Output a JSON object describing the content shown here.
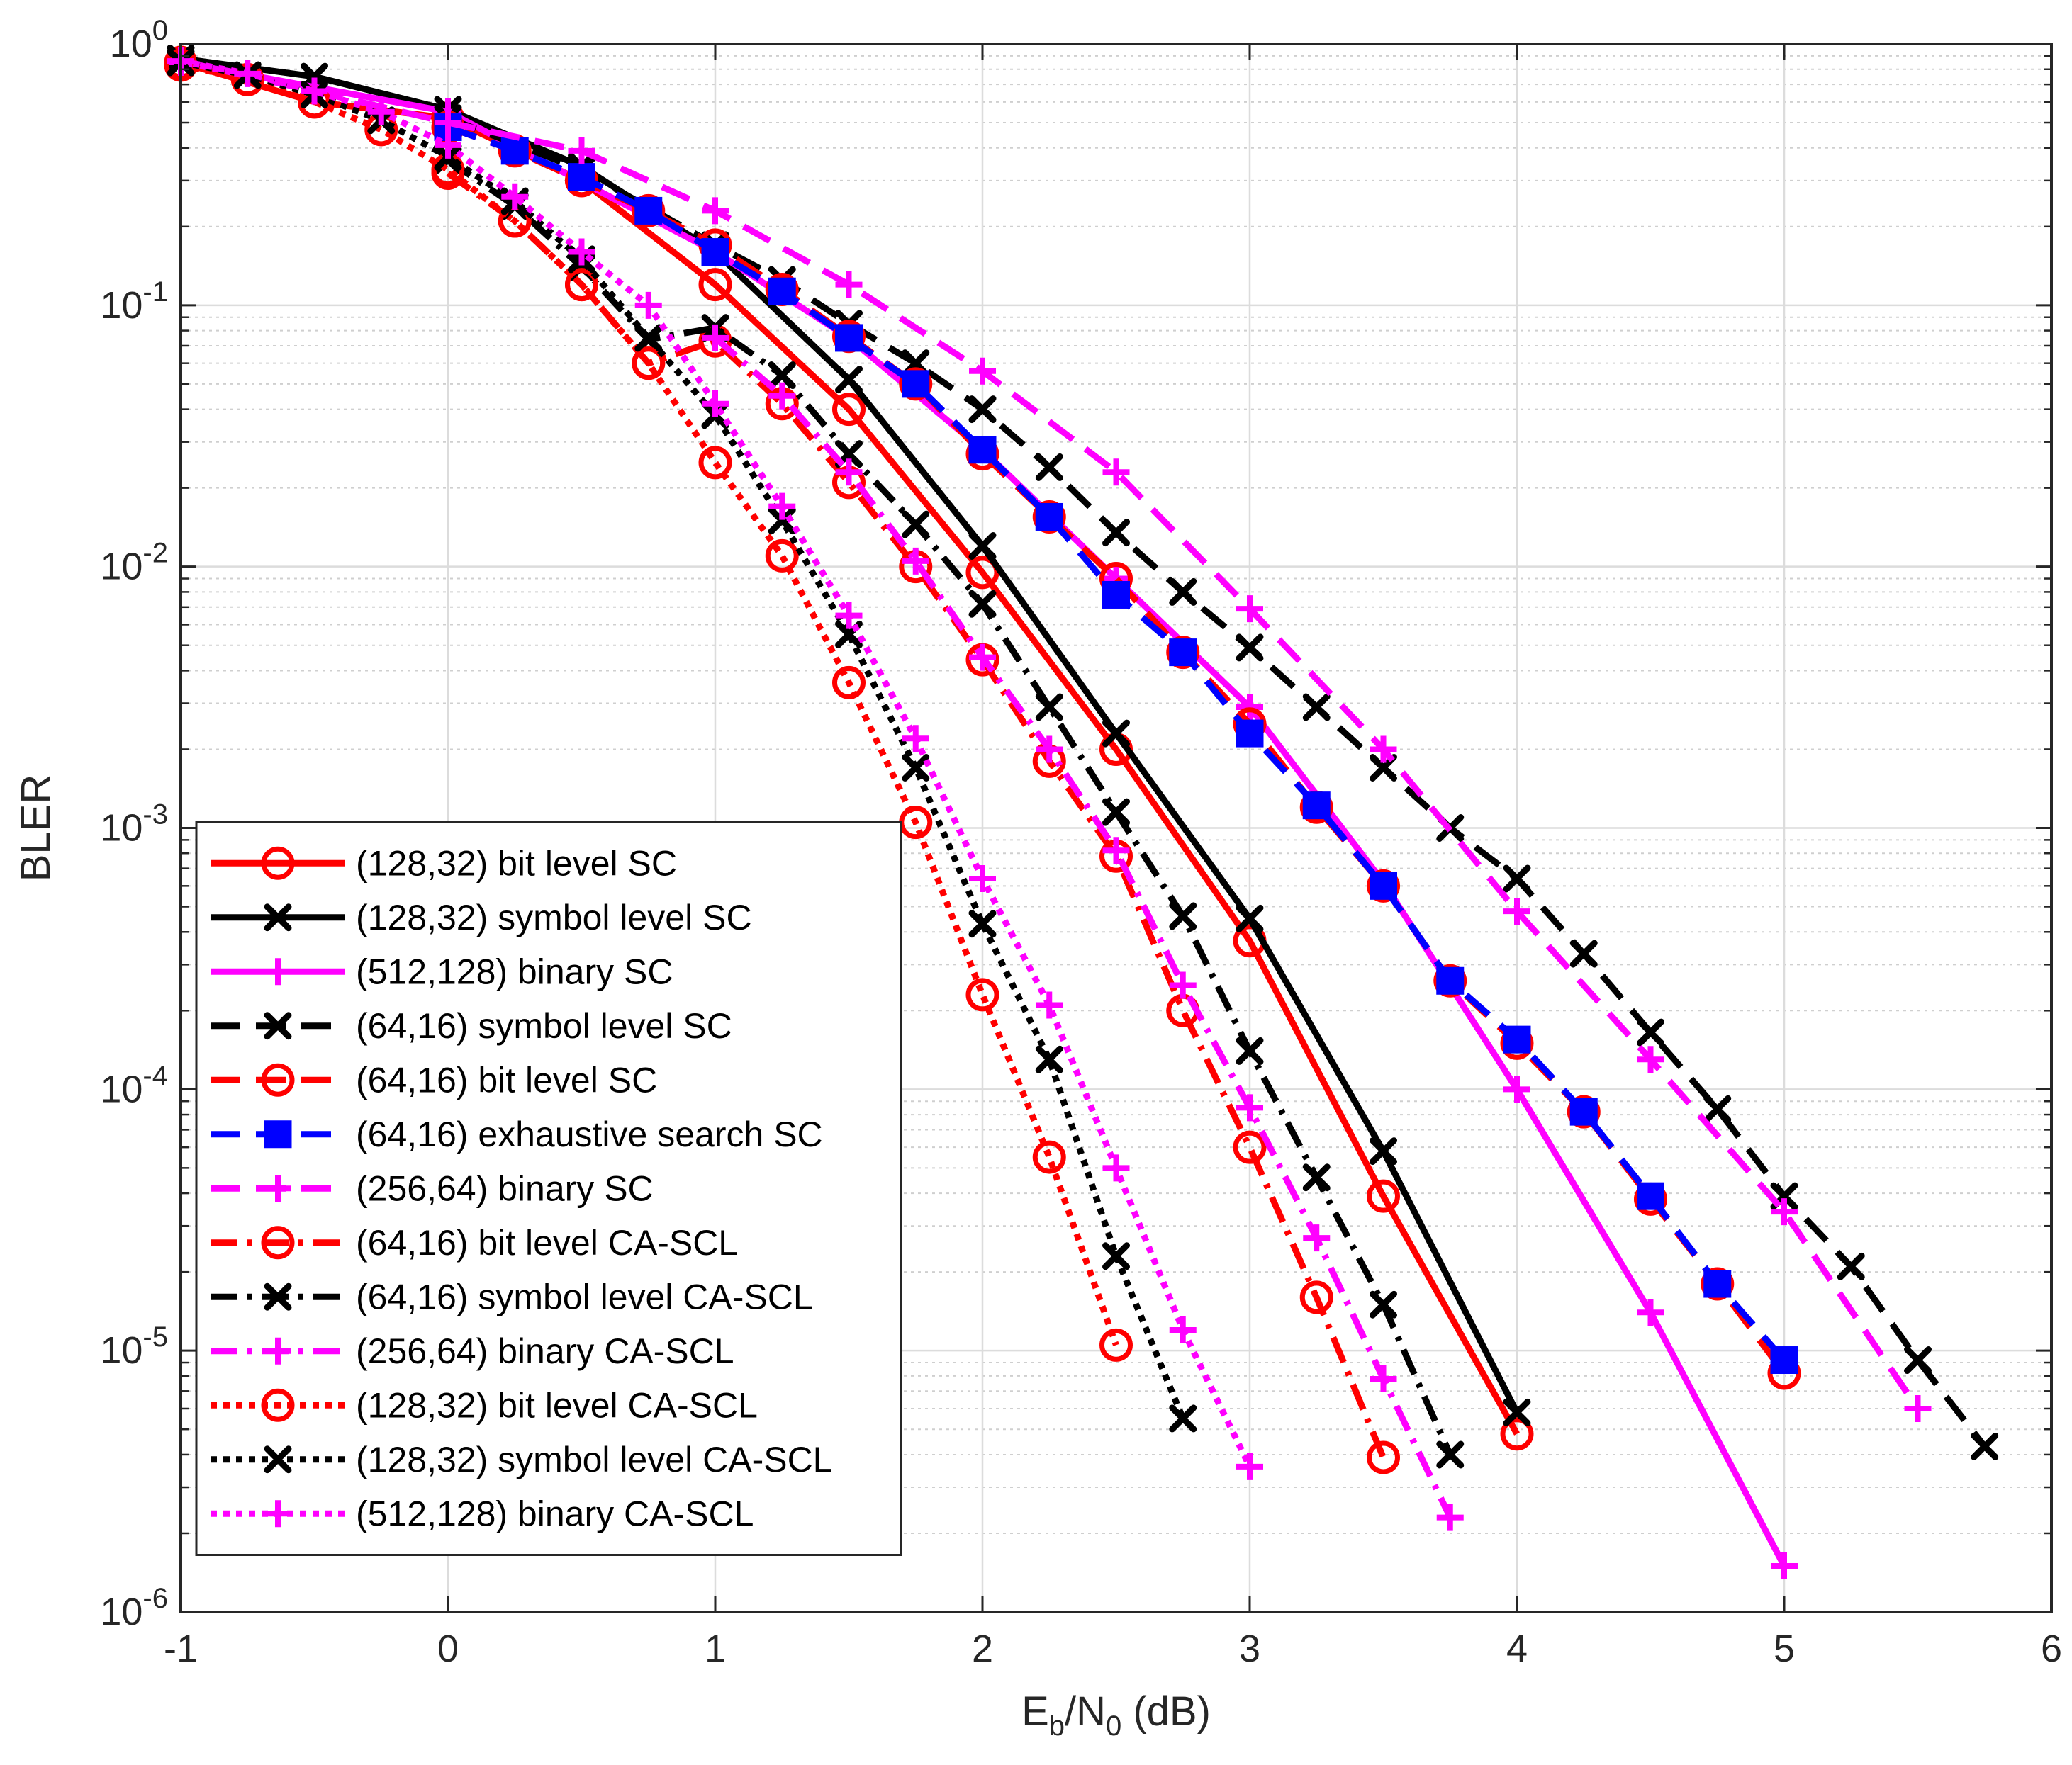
{
  "chart_data": {
    "type": "line",
    "title": "",
    "xlabel": {
      "base": "E",
      "sub1": "b",
      "mid": "/N",
      "sub2": "0",
      "tail": " (dB)"
    },
    "ylabel": "BLER",
    "xlim": [
      -1,
      6
    ],
    "ylim_log10": [
      -6,
      0
    ],
    "yscale": "log",
    "grid": true,
    "legend_position": "bottom-left",
    "x_ticks": [
      "-1",
      "0",
      "1",
      "2",
      "3",
      "4",
      "5",
      "6"
    ],
    "y_ticks": [
      {
        "base": "10",
        "exp": "0"
      },
      {
        "base": "10",
        "exp": "-1"
      },
      {
        "base": "10",
        "exp": "-2"
      },
      {
        "base": "10",
        "exp": "-3"
      },
      {
        "base": "10",
        "exp": "-4"
      },
      {
        "base": "10",
        "exp": "-5"
      },
      {
        "base": "10",
        "exp": "-6"
      }
    ],
    "series": [
      {
        "name": "(128,32) bit level SC",
        "color": "#ff0000",
        "dash": "solid",
        "marker": "circle",
        "x": [
          -1,
          -0.5,
          0,
          0.5,
          1,
          1.5,
          2,
          2.5,
          3,
          3.5,
          4
        ],
        "y": [
          0.85,
          0.6,
          0.52,
          0.3,
          0.12,
          0.04,
          0.0095,
          0.002,
          0.00037,
          3.9e-05,
          4.8e-06
        ]
      },
      {
        "name": "(128,32) symbol level SC",
        "color": "#000000",
        "dash": "solid",
        "marker": "x",
        "x": [
          -1,
          -0.5,
          0,
          0.5,
          1,
          1.5,
          2,
          2.5,
          3,
          3.5,
          4
        ],
        "y": [
          0.88,
          0.75,
          0.56,
          0.34,
          0.16,
          0.052,
          0.012,
          0.0023,
          0.00045,
          5.8e-05,
          5.8e-06
        ]
      },
      {
        "name": "(512,128) binary SC",
        "color": "#ff00ff",
        "dash": "solid",
        "marker": "plus",
        "x": [
          -1,
          0,
          1,
          1.5,
          2,
          2.5,
          3,
          3.5,
          4,
          4.5,
          5
        ],
        "y": [
          0.85,
          0.55,
          0.16,
          0.075,
          0.028,
          0.009,
          0.0029,
          0.00062,
          0.0001,
          1.4e-05,
          1.5e-06
        ]
      },
      {
        "name": "(64,16) symbol level SC",
        "color": "#000000",
        "dash": "dashed",
        "marker": "x",
        "x": [
          0,
          0.5,
          1,
          1.25,
          1.5,
          1.75,
          2,
          2.25,
          2.5,
          2.75,
          3,
          3.25,
          3.5,
          3.75,
          4,
          4.25,
          4.5,
          4.75,
          5,
          5.25,
          5.5,
          5.75
        ],
        "y": [
          0.52,
          0.33,
          0.17,
          0.125,
          0.085,
          0.06,
          0.04,
          0.024,
          0.0135,
          0.008,
          0.0049,
          0.0029,
          0.0017,
          0.001,
          0.00064,
          0.00033,
          0.000165,
          8.4e-05,
          3.9e-05,
          2.1e-05,
          9.2e-06,
          4.3e-06
        ]
      },
      {
        "name": "(64,16) bit level SC",
        "color": "#ff0000",
        "dash": "dashed",
        "marker": "circle",
        "x": [
          0,
          0.25,
          0.5,
          0.75,
          1,
          1.25,
          1.5,
          1.75,
          2,
          2.25,
          2.5,
          2.75,
          3,
          3.25,
          3.5,
          3.75,
          4,
          4.25,
          4.5,
          4.75,
          5
        ],
        "y": [
          0.48,
          0.39,
          0.3,
          0.23,
          0.17,
          0.115,
          0.076,
          0.05,
          0.027,
          0.0155,
          0.009,
          0.0047,
          0.0025,
          0.0012,
          0.0006,
          0.00026,
          0.00015,
          8.2e-05,
          3.8e-05,
          1.8e-05,
          8.2e-06
        ]
      },
      {
        "name": "(64,16) exhaustive search SC",
        "color": "#0000ff",
        "dash": "dashed",
        "marker": "square",
        "x": [
          0,
          0.25,
          0.5,
          0.75,
          1,
          1.25,
          1.5,
          1.75,
          2,
          2.25,
          2.5,
          2.75,
          3,
          3.25,
          3.5,
          3.75,
          4,
          4.25,
          4.5,
          4.75,
          5
        ],
        "y": [
          0.48,
          0.39,
          0.31,
          0.23,
          0.16,
          0.113,
          0.075,
          0.05,
          0.028,
          0.0155,
          0.0078,
          0.0047,
          0.0023,
          0.00122,
          0.0006,
          0.00026,
          0.000155,
          8.2e-05,
          3.9e-05,
          1.8e-05,
          9.2e-06
        ]
      },
      {
        "name": "(256,64) binary SC",
        "color": "#ff00ff",
        "dash": "dashed",
        "marker": "plus",
        "x": [
          -1,
          -0.5,
          0,
          0.5,
          1,
          1.5,
          2,
          2.5,
          3,
          3.5,
          4,
          4.5,
          5,
          5.5
        ],
        "y": [
          0.86,
          0.66,
          0.5,
          0.39,
          0.23,
          0.12,
          0.056,
          0.023,
          0.0069,
          0.002,
          0.00048,
          0.00013,
          3.4e-05,
          6e-06
        ]
      },
      {
        "name": "(64,16) bit level CA-SCL",
        "color": "#ff0000",
        "dash": "dashdot",
        "marker": "circle",
        "x": [
          0,
          0.25,
          0.5,
          0.75,
          1,
          1.25,
          1.5,
          1.75,
          2,
          2.25,
          2.5,
          2.75,
          3,
          3.25,
          3.5
        ],
        "y": [
          0.32,
          0.21,
          0.12,
          0.06,
          0.073,
          0.042,
          0.021,
          0.01,
          0.0044,
          0.0018,
          0.00078,
          0.0002,
          6e-05,
          1.6e-05,
          3.9e-06
        ]
      },
      {
        "name": "(64,16) symbol level CA-SCL",
        "color": "#000000",
        "dash": "dashdot",
        "marker": "x",
        "x": [
          0,
          0.25,
          0.5,
          0.75,
          1,
          1.25,
          1.5,
          1.75,
          2,
          2.25,
          2.5,
          2.75,
          3,
          3.25,
          3.5,
          3.75
        ],
        "y": [
          0.36,
          0.24,
          0.14,
          0.074,
          0.082,
          0.054,
          0.027,
          0.0145,
          0.0072,
          0.0029,
          0.00115,
          0.00046,
          0.00014,
          4.6e-05,
          1.5e-05,
          4e-06
        ]
      },
      {
        "name": "(256,64) binary CA-SCL",
        "color": "#ff00ff",
        "dash": "dashdot",
        "marker": "plus",
        "x": [
          1,
          1.25,
          1.5,
          1.75,
          2,
          2.25,
          2.5,
          2.75,
          3,
          3.25,
          3.5,
          3.75
        ],
        "y": [
          0.075,
          0.045,
          0.023,
          0.0105,
          0.0045,
          0.002,
          0.00082,
          0.00025,
          8.5e-05,
          2.7e-05,
          7.8e-06,
          2.3e-06
        ]
      },
      {
        "name": "(128,32) bit level CA-SCL",
        "color": "#ff0000",
        "dash": "dotted",
        "marker": "circle",
        "x": [
          -1,
          -0.75,
          -0.5,
          -0.25,
          0,
          0.25,
          0.5,
          0.75,
          1,
          1.25,
          1.5,
          1.75,
          2,
          2.25,
          2.5
        ],
        "y": [
          0.83,
          0.73,
          0.6,
          0.47,
          0.33,
          0.21,
          0.12,
          0.06,
          0.025,
          0.011,
          0.0036,
          0.00105,
          0.00023,
          5.5e-05,
          1.05e-05
        ]
      },
      {
        "name": "(128,32) symbol level CA-SCL",
        "color": "#000000",
        "dash": "dotted",
        "marker": "x",
        "x": [
          -1,
          -0.75,
          -0.5,
          -0.25,
          0,
          0.25,
          0.5,
          0.75,
          1,
          1.25,
          1.5,
          1.75,
          2,
          2.25,
          2.5,
          2.75
        ],
        "y": [
          0.85,
          0.76,
          0.64,
          0.51,
          0.37,
          0.25,
          0.15,
          0.075,
          0.038,
          0.015,
          0.0055,
          0.0017,
          0.00043,
          0.00013,
          2.3e-05,
          5.5e-06
        ]
      },
      {
        "name": "(512,128) binary CA-SCL",
        "color": "#ff00ff",
        "dash": "dotted",
        "marker": "plus",
        "x": [
          -1,
          -0.75,
          -0.5,
          -0.25,
          0,
          0.25,
          0.5,
          0.75,
          1,
          1.25,
          1.5,
          1.75,
          2,
          2.25,
          2.5,
          2.75,
          3
        ],
        "y": [
          0.86,
          0.77,
          0.66,
          0.55,
          0.41,
          0.26,
          0.16,
          0.1,
          0.042,
          0.017,
          0.0065,
          0.0022,
          0.00064,
          0.00021,
          5e-05,
          1.2e-05,
          3.6e-06
        ]
      }
    ]
  }
}
